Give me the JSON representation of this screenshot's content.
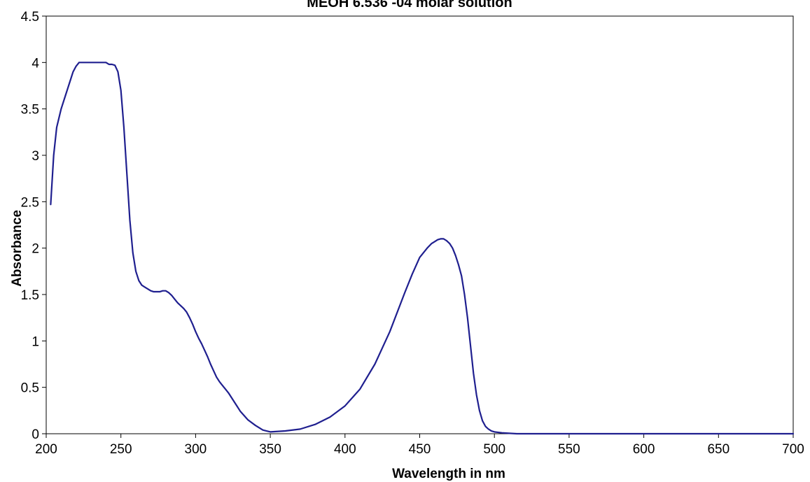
{
  "chart_data": {
    "type": "line",
    "title": "MEOH 6.536 -04 molar solution",
    "xlabel": "Wavelength in nm",
    "ylabel": "Absorbance",
    "xlim": [
      200,
      700
    ],
    "ylim": [
      0,
      4.5
    ],
    "xticks": [
      "200",
      "250",
      "300",
      "350",
      "400",
      "450",
      "500",
      "550",
      "600",
      "650",
      "700"
    ],
    "yticks": [
      "0",
      "0.5",
      "1",
      "1.5",
      "2",
      "2.5",
      "3",
      "3.5",
      "4",
      "4.5"
    ],
    "grid": false,
    "legend": "none",
    "line_color": "#1f1f8f",
    "series": [
      {
        "x": [
          203,
          205,
          207,
          210,
          213,
          216,
          218,
          220,
          222,
          224,
          230,
          235,
          240,
          242,
          244,
          246,
          248,
          250,
          252,
          254,
          256,
          258,
          260,
          262,
          264,
          266,
          268,
          270,
          272,
          274,
          276,
          278,
          280,
          282,
          284,
          286,
          288,
          290,
          292,
          294,
          296,
          298,
          300,
          302,
          304,
          306,
          308,
          310,
          312,
          314,
          316,
          318,
          320,
          322,
          324,
          326,
          328,
          330,
          335,
          340,
          345,
          350,
          360,
          370,
          380,
          390,
          400,
          410,
          420,
          430,
          440,
          445,
          450,
          455,
          458,
          460,
          462,
          464,
          466,
          468,
          470,
          472,
          474,
          476,
          478,
          480,
          482,
          484,
          486,
          488,
          490,
          492,
          494,
          496,
          498,
          500,
          505,
          510,
          515,
          520,
          530,
          550,
          600,
          650,
          700
        ],
        "y": [
          2.47,
          3.0,
          3.3,
          3.5,
          3.65,
          3.8,
          3.9,
          3.96,
          4.0,
          4.0,
          4.0,
          4.0,
          4.0,
          3.98,
          3.98,
          3.97,
          3.9,
          3.7,
          3.3,
          2.8,
          2.3,
          1.95,
          1.75,
          1.65,
          1.6,
          1.58,
          1.56,
          1.54,
          1.53,
          1.53,
          1.53,
          1.54,
          1.54,
          1.52,
          1.49,
          1.45,
          1.41,
          1.38,
          1.35,
          1.31,
          1.25,
          1.18,
          1.1,
          1.03,
          0.97,
          0.9,
          0.83,
          0.75,
          0.68,
          0.61,
          0.56,
          0.52,
          0.48,
          0.44,
          0.39,
          0.34,
          0.29,
          0.24,
          0.15,
          0.09,
          0.04,
          0.02,
          0.03,
          0.05,
          0.1,
          0.18,
          0.3,
          0.48,
          0.75,
          1.1,
          1.52,
          1.72,
          1.9,
          2.0,
          2.05,
          2.07,
          2.09,
          2.1,
          2.1,
          2.08,
          2.05,
          2.0,
          1.92,
          1.82,
          1.7,
          1.5,
          1.25,
          0.95,
          0.65,
          0.42,
          0.25,
          0.14,
          0.08,
          0.05,
          0.03,
          0.02,
          0.01,
          0.005,
          0.0,
          0.0,
          0.0,
          0.0,
          0.0,
          0.0,
          0.0
        ]
      }
    ]
  }
}
